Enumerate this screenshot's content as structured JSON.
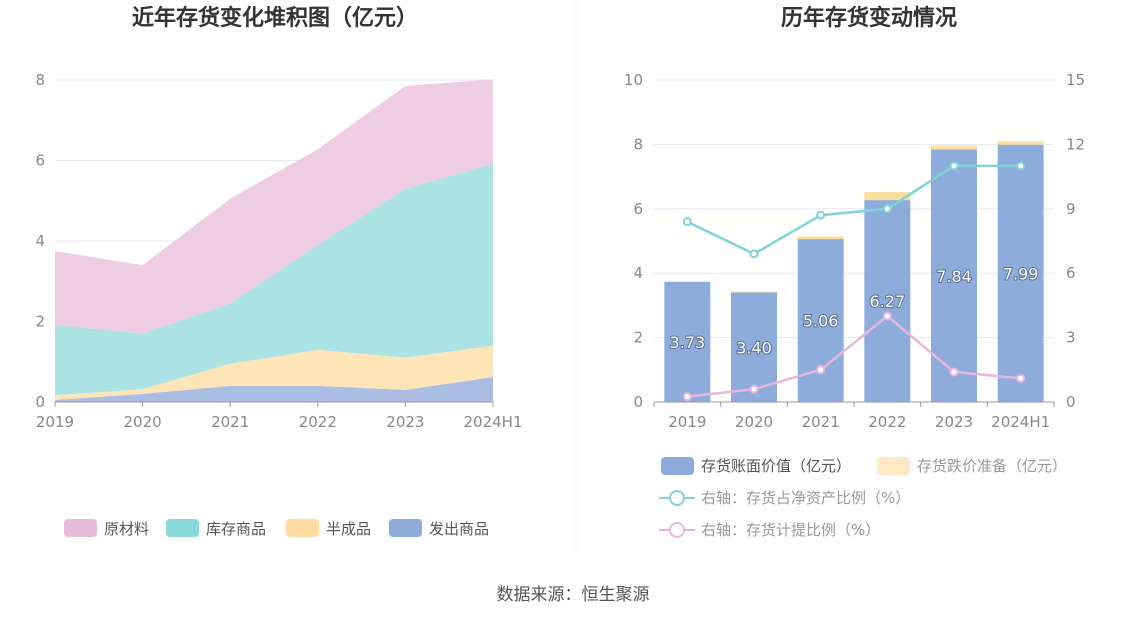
{
  "source_label": "数据来源：恒生聚源",
  "colors": {
    "raw": "#eecde3",
    "stock": "#abe2e4",
    "semi": "#fde5b8",
    "ship": "#abbde3",
    "raw_legend": "#e6bbd8",
    "stock_legend": "#88d8dc",
    "semi_legend": "#fddba0",
    "ship_legend": "#8fa9d9",
    "bar_book": "#8eacdb",
    "bar_reserve": "#fadf9e",
    "bar_reserve_legend": "#fde9c6",
    "line_net": "#7fd3d6",
    "line_ratio": "#e8b6dc",
    "grid": "#e3e7f5",
    "axis": "#999999"
  },
  "chart_data": [
    {
      "type": "area",
      "stacked": true,
      "title": "近年存货变化堆积图（亿元）",
      "categories": [
        "2019",
        "2020",
        "2021",
        "2022",
        "2023",
        "2024H1"
      ],
      "ylim": [
        0,
        8
      ],
      "yticks": [
        "0",
        "2",
        "4",
        "6",
        "8"
      ],
      "series": [
        {
          "name": "发出商品",
          "values": [
            0.05,
            0.2,
            0.4,
            0.4,
            0.3,
            0.62
          ]
        },
        {
          "name": "半成品",
          "values": [
            0.12,
            0.12,
            0.55,
            0.9,
            0.8,
            0.78
          ]
        },
        {
          "name": "库存商品",
          "values": [
            1.75,
            1.38,
            1.5,
            2.6,
            4.2,
            4.52
          ]
        },
        {
          "name": "原材料",
          "values": [
            1.83,
            1.7,
            2.6,
            2.38,
            2.55,
            2.1
          ]
        }
      ],
      "legend": [
        "原材料",
        "库存商品",
        "半成品",
        "发出商品"
      ]
    },
    {
      "type": "bar",
      "stacked": true,
      "title": "历年存货变动情况",
      "categories": [
        "2019",
        "2020",
        "2021",
        "2022",
        "2023",
        "2024H1"
      ],
      "ylim": [
        0,
        10
      ],
      "yticks": [
        "0",
        "2",
        "4",
        "6",
        "8",
        "10"
      ],
      "y2lim": [
        0,
        15
      ],
      "y2ticks": [
        "0",
        "3",
        "6",
        "9",
        "12",
        "15"
      ],
      "series": [
        {
          "name": "存货账面价值（亿元）",
          "values": [
            3.73,
            3.4,
            5.06,
            6.27,
            7.84,
            7.99
          ],
          "labels": [
            "3.73",
            "3.40",
            "5.06",
            "6.27",
            "7.84",
            "7.99"
          ]
        },
        {
          "name": "存货跌价准备（亿元）",
          "values": [
            0.02,
            0.03,
            0.08,
            0.25,
            0.12,
            0.1
          ]
        }
      ],
      "lines": [
        {
          "name": "右轴：存货占净资产比例（%）",
          "axis": "right",
          "values": [
            8.4,
            6.9,
            8.7,
            9.0,
            11.0,
            11.0
          ]
        },
        {
          "name": "右轴：存货计提比例（%）",
          "axis": "right",
          "values": [
            0.25,
            0.6,
            1.5,
            4.0,
            1.4,
            1.1
          ]
        }
      ]
    }
  ]
}
